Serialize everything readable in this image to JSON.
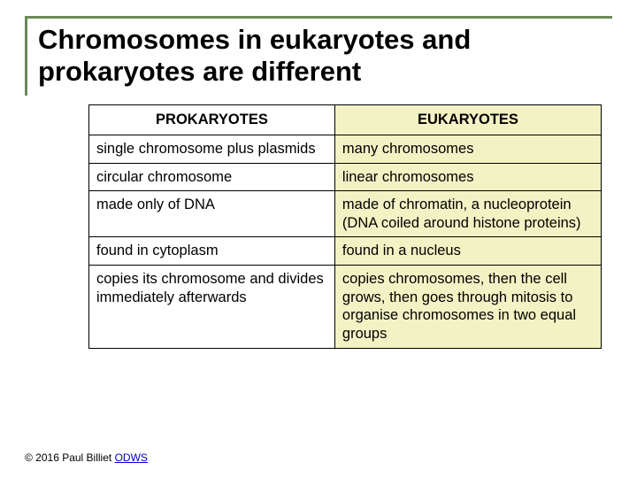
{
  "title": "Chromosomes in eukaryotes and prokaryotes are different",
  "table": {
    "headers": {
      "prokaryotes": "PROKARYOTES",
      "eukaryotes": "EUKARYOTES"
    },
    "rows": [
      {
        "prok": "single chromosome plus plasmids",
        "euk": "many chromosomes"
      },
      {
        "prok": "circular chromosome",
        "euk": "linear chromosomes"
      },
      {
        "prok": "made only of DNA",
        "euk": "made of chromatin, a nucleoprotein (DNA coiled around histone proteins)"
      },
      {
        "prok": "found in cytoplasm",
        "euk": "found in a nucleus"
      },
      {
        "prok": "copies its chromosome and divides immediately afterwards",
        "euk": "copies chromosomes, then the cell grows, then goes through mitosis to organise chromosomes in two equal groups"
      }
    ],
    "colors": {
      "prok_bg": "#ffffff",
      "euk_bg": "#f3f2c4",
      "border": "#000000",
      "accent_border": "#6a8a5a"
    },
    "fontsize_header": 16.5,
    "fontsize_cell": 16.5
  },
  "footer": {
    "copyright": "© 2016 Paul Billiet ",
    "link_text": "ODWS"
  }
}
